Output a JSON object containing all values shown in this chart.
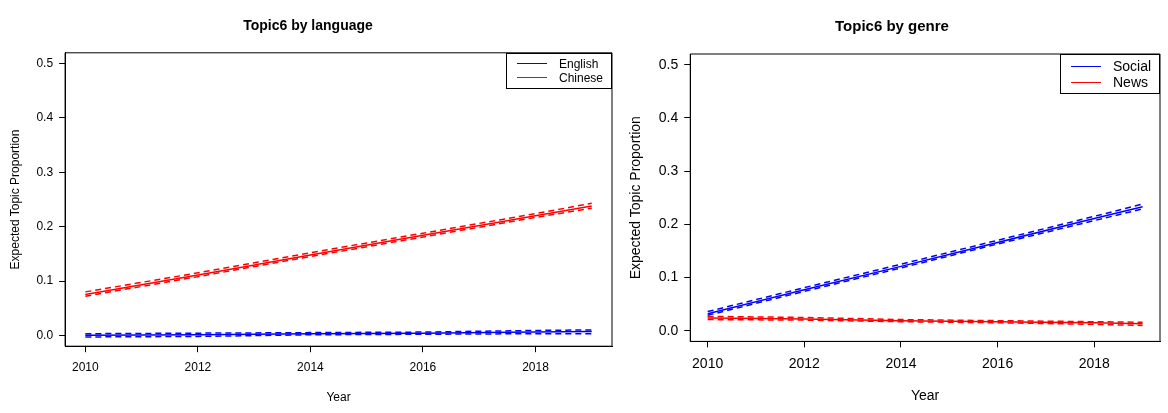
{
  "chart_data": [
    {
      "type": "line",
      "title": "Topic6 by language",
      "xlabel": "Year",
      "ylabel": "Expected Topic Proportion",
      "x": [
        2010,
        2012,
        2014,
        2016,
        2018,
        2019
      ],
      "xlim": [
        2009.64,
        2019.36
      ],
      "xticks": [
        2010,
        2012,
        2014,
        2016,
        2018
      ],
      "ylim": [
        -0.02,
        0.52
      ],
      "yticks": [
        {
          "value": 0,
          "label": "0.0"
        },
        0.1,
        0.2,
        0.3,
        0.4,
        0.5
      ],
      "grid": false,
      "legend": "top right",
      "marker": "none",
      "line_style": "solid",
      "series": [
        {
          "name": "English",
          "color": "#0000ff",
          "values": [
            0.0,
            0.001,
            0.003,
            0.004,
            0.006,
            0.007
          ]
        },
        {
          "name": "Chinese",
          "color": "#ff0000",
          "values": [
            0.075,
            0.111,
            0.148,
            0.184,
            0.22,
            0.238
          ]
        },
        {
          "color": "#0000ff",
          "line_style": "dashed",
          "values": [
            -0.003,
            -0.002,
            0.001,
            0.002,
            0.003,
            0.003
          ]
        },
        {
          "color": "#0000ff",
          "line_style": "dashed",
          "values": [
            0.003,
            0.004,
            0.005,
            0.006,
            0.009,
            0.01
          ]
        },
        {
          "color": "#ff0000",
          "line_style": "dashed",
          "values": [
            0.072,
            0.108,
            0.145,
            0.181,
            0.217,
            0.234
          ]
        },
        {
          "color": "#ff0000",
          "line_style": "dashed",
          "values": [
            0.08,
            0.115,
            0.152,
            0.188,
            0.224,
            0.243
          ]
        }
      ]
    },
    {
      "type": "line",
      "title": "Topic6 by genre",
      "xlabel": "Year",
      "ylabel": "Expected Topic Proportion",
      "x": [
        2010,
        2012,
        2014,
        2016,
        2018,
        2019
      ],
      "xlim": [
        2009.64,
        2019.36
      ],
      "xticks": [
        2010,
        2012,
        2014,
        2016,
        2018
      ],
      "ylim": [
        -0.02,
        0.52
      ],
      "yticks": [
        {
          "value": 0,
          "label": "0.0"
        },
        0.1,
        0.2,
        0.3,
        0.4,
        0.5
      ],
      "grid": false,
      "legend": "top right",
      "marker": "none",
      "line_style": "solid",
      "series": [
        {
          "name": "Social",
          "color": "#0000ff",
          "values": [
            0.032,
            0.077,
            0.121,
            0.166,
            0.211,
            0.233
          ]
        },
        {
          "name": "News",
          "color": "#ff0000",
          "values": [
            0.024,
            0.022,
            0.019,
            0.017,
            0.015,
            0.013
          ]
        },
        {
          "color": "#0000ff",
          "line_style": "dashed",
          "values": [
            0.029,
            0.074,
            0.118,
            0.163,
            0.207,
            0.229
          ]
        },
        {
          "color": "#0000ff",
          "line_style": "dashed",
          "values": [
            0.036,
            0.081,
            0.125,
            0.17,
            0.215,
            0.238
          ]
        },
        {
          "color": "#ff0000",
          "line_style": "dashed",
          "values": [
            0.021,
            0.02,
            0.017,
            0.015,
            0.012,
            0.01
          ]
        },
        {
          "color": "#ff0000",
          "line_style": "dashed",
          "values": [
            0.027,
            0.025,
            0.021,
            0.019,
            0.017,
            0.016
          ]
        }
      ]
    }
  ]
}
